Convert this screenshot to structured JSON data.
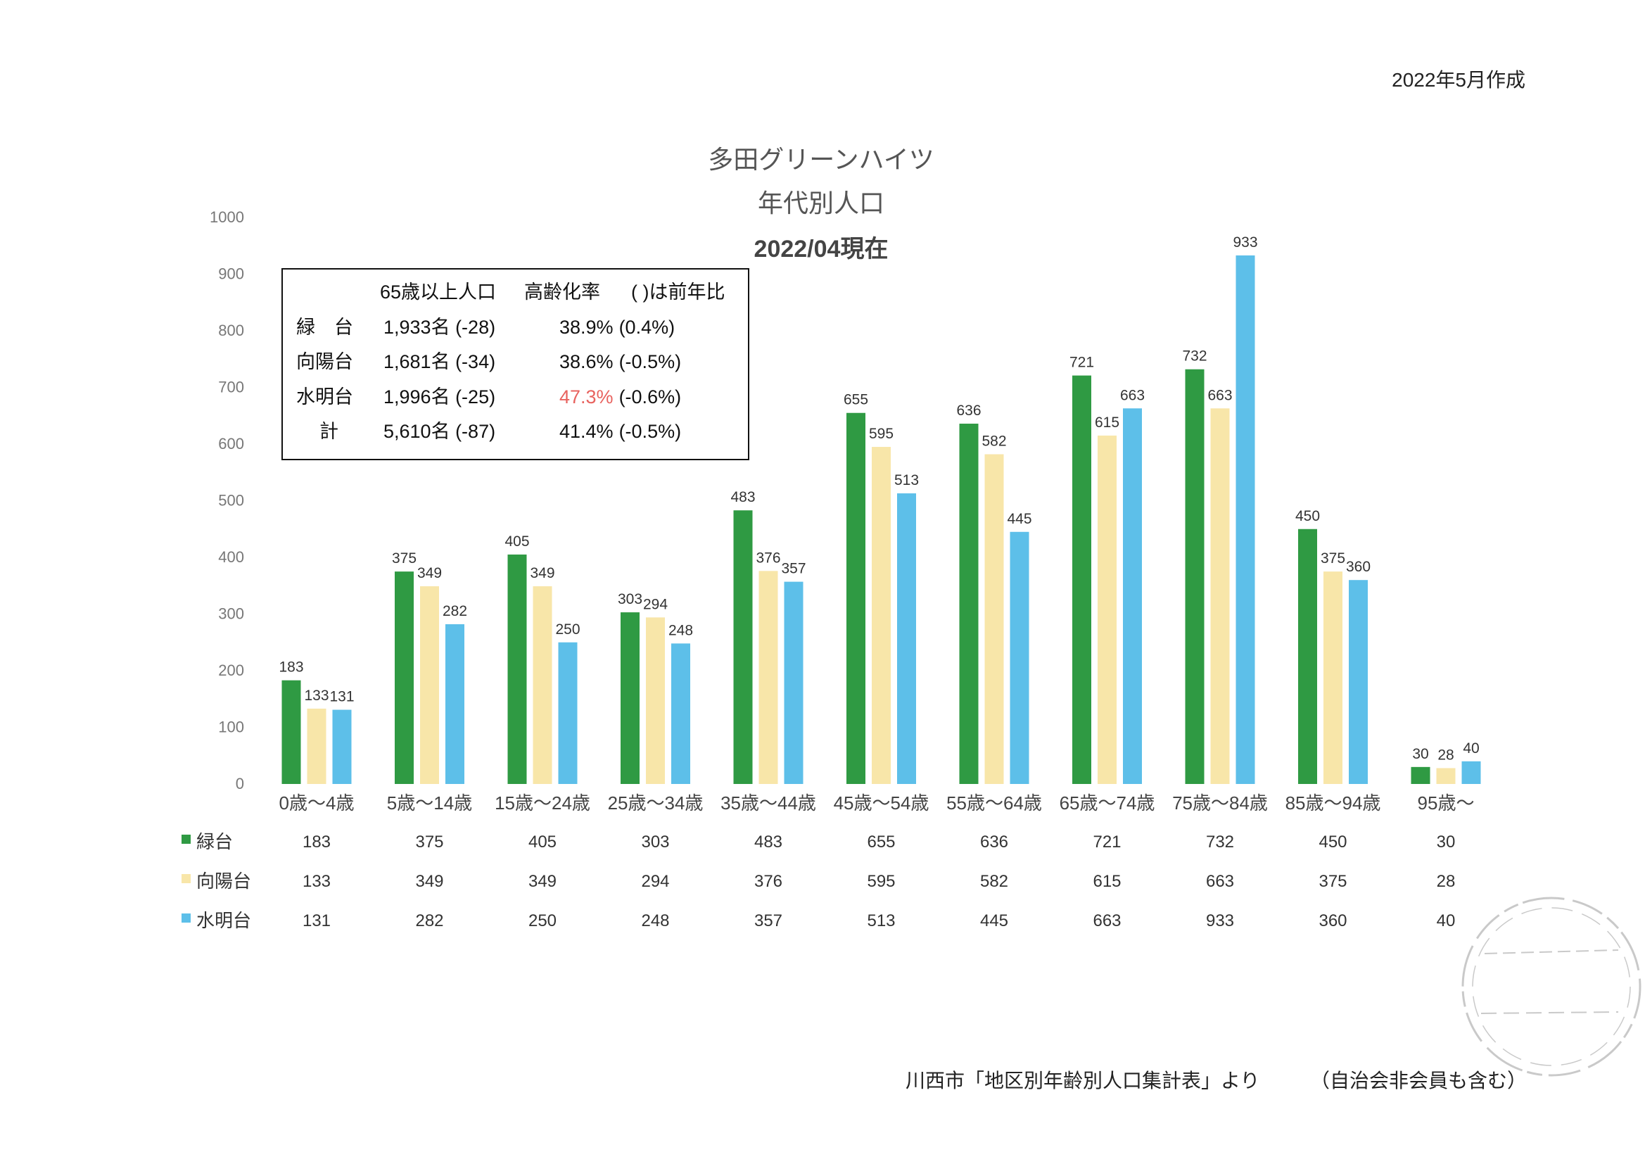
{
  "created_note": "2022年5月作成",
  "chart_data": {
    "type": "bar",
    "title": "多田グリーンハイツ",
    "subtitle": "年代別人口",
    "date_label": "2022/04現在",
    "categories": [
      "0歳～4歳",
      "5歳～14歳",
      "15歳～24歳",
      "25歳～34歳",
      "35歳～44歳",
      "45歳～54歳",
      "55歳～64歳",
      "65歳～74歳",
      "75歳～84歳",
      "85歳～94歳",
      "95歳～"
    ],
    "series": [
      {
        "name": "緑台",
        "values": [
          183,
          375,
          405,
          303,
          483,
          655,
          636,
          721,
          732,
          450,
          30
        ],
        "color": "#2f9a43"
      },
      {
        "name": "向陽台",
        "values": [
          133,
          349,
          349,
          294,
          376,
          595,
          582,
          615,
          663,
          375,
          28
        ],
        "color": "#f8e6a9"
      },
      {
        "name": "水明台",
        "values": [
          131,
          282,
          250,
          248,
          357,
          513,
          445,
          663,
          933,
          360,
          40
        ],
        "color": "#5dbfe9"
      }
    ],
    "yticks": [
      0,
      100,
      200,
      300,
      400,
      500,
      600,
      700,
      800,
      900,
      1000
    ],
    "ylim": [
      0,
      1000
    ],
    "grid": false,
    "legend": "bottom-left"
  },
  "summary_box": {
    "header": {
      "population": "65歳以上人口",
      "rate": "高齢化率",
      "note": "( )は前年比"
    },
    "rows": [
      {
        "area": "緑　台",
        "population": "1,933名 (-28)",
        "rate": "38.9%",
        "change": "(0.4%)"
      },
      {
        "area": "向陽台",
        "population": "1,681名 (-34)",
        "rate": "38.6%",
        "change": "(-0.5%)"
      },
      {
        "area": "水明台",
        "population": "1,996名 (-25)",
        "rate": "47.3%",
        "change": "(-0.6%)",
        "highlight": true
      },
      {
        "area": "計",
        "population": "5,610名 (-87)",
        "rate": "41.4%",
        "change": "(-0.5%)"
      }
    ],
    "highlight_color": "#e8635f"
  },
  "source_note": "川西市「地区別年齢別人口集計表」より",
  "member_note": "（自治会非会員も含む）"
}
